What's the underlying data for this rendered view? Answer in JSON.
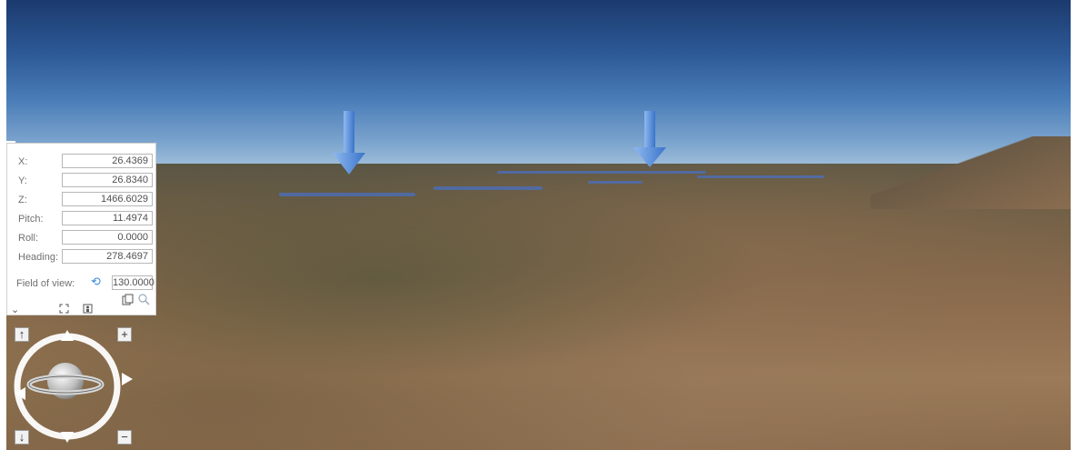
{
  "camera": {
    "fields": [
      {
        "label": "X:",
        "value": "26.4369"
      },
      {
        "label": "Y:",
        "value": "26.8340"
      },
      {
        "label": "Z:",
        "value": "1466.6029"
      },
      {
        "label": "Pitch:",
        "value": "11.4974"
      },
      {
        "label": "Roll:",
        "value": "0.0000"
      },
      {
        "label": "Heading:",
        "value": "278.4697"
      }
    ],
    "fov_label": "Field of view:",
    "fov_value": "130.0000"
  },
  "navigation": {
    "up": "↑",
    "down": "↓",
    "zoom_in": "+",
    "zoom_out": "−"
  },
  "icons": {
    "reset": "⟲",
    "collapse": "⌄",
    "camera_search": "search-icon"
  },
  "colors": {
    "marker_blue": "#4a86d8",
    "sky_top": "#1b3a6e",
    "reset_blue": "#3a8ad8"
  }
}
